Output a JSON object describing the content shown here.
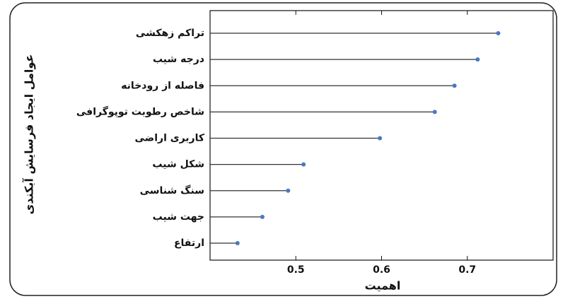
{
  "chart_data": {
    "type": "lollipop",
    "categories": [
      "تراکم زهکشی",
      "درجه شیب",
      "فاصله از رودخانه",
      "شاخص رطوبت توپوگرافی",
      "کاربری اراضی",
      "شکل شیب",
      "سنگ شناسی",
      "جهت شیب",
      "ارتفاع"
    ],
    "values": [
      0.736,
      0.712,
      0.685,
      0.662,
      0.598,
      0.509,
      0.491,
      0.461,
      0.432
    ],
    "color": "#4a78c2",
    "xlim": [
      0.4,
      0.8
    ],
    "xticks": [
      0.5,
      0.6,
      0.7
    ],
    "x_label": "اهمیت",
    "y_label": "عوامل ایجاد فرسایش آبکندی"
  }
}
